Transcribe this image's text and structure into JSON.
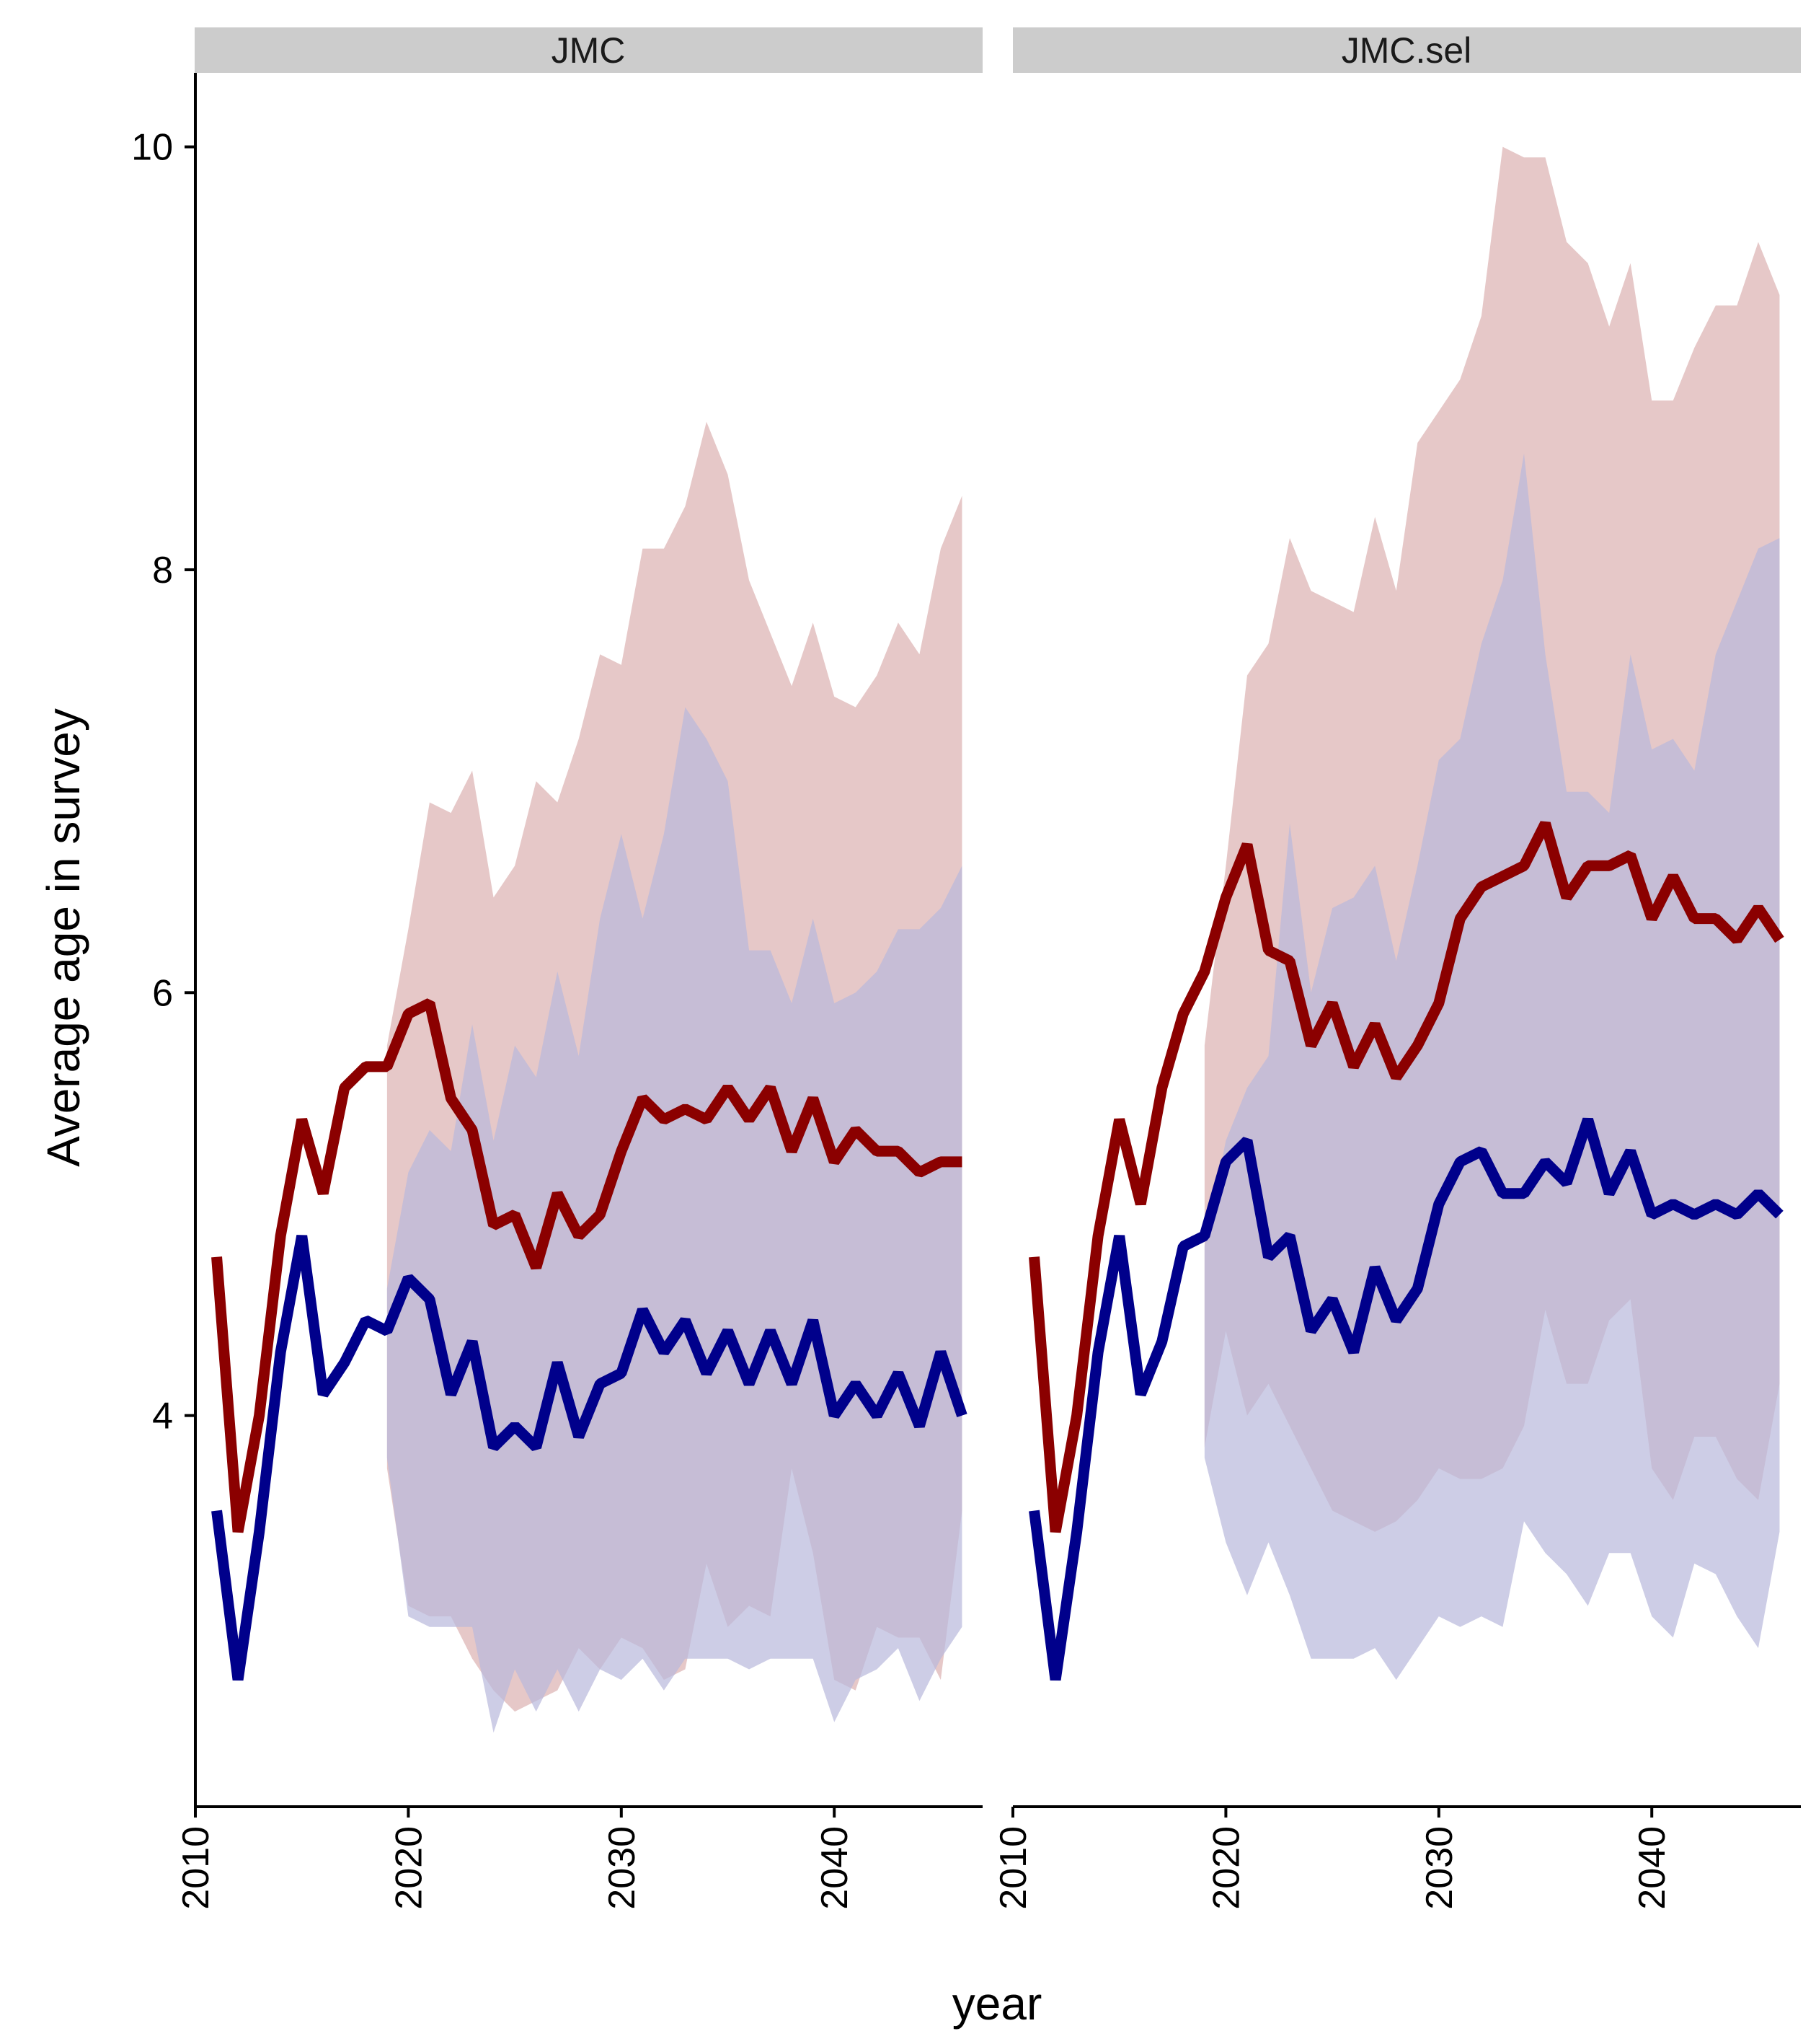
{
  "chart_data": {
    "type": "line",
    "xlabel": "year",
    "ylabel": "Average age in survey",
    "xlim": [
      2010,
      2047
    ],
    "ylim": [
      2.15,
      10.35
    ],
    "x_ticks": [
      "2010",
      "2020",
      "2030",
      "2040"
    ],
    "y_ticks": [
      "4",
      "6",
      "8",
      "10"
    ],
    "grid": false,
    "colors": {
      "red_line": "#8b0000",
      "blue_line": "#00008b",
      "red_band": "#dcb0b0",
      "blue_band": "#b8b8dc",
      "strip_bg": "#cccccc"
    },
    "panels": [
      {
        "title": "JMC",
        "red_line": {
          "x": [
            2011,
            2012,
            2013,
            2014,
            2015,
            2016,
            2017,
            2018,
            2019,
            2020,
            2021,
            2022,
            2023,
            2024,
            2025,
            2026,
            2027,
            2028,
            2029,
            2030,
            2031,
            2032,
            2033,
            2034,
            2035,
            2036,
            2037,
            2038,
            2039,
            2040,
            2041,
            2042,
            2043,
            2044,
            2045,
            2046
          ],
          "y": [
            4.75,
            3.45,
            4.0,
            4.85,
            5.4,
            5.05,
            5.55,
            5.65,
            5.65,
            5.9,
            5.95,
            5.5,
            5.35,
            4.9,
            4.95,
            4.7,
            5.05,
            4.85,
            4.95,
            5.25,
            5.5,
            5.4,
            5.45,
            5.4,
            5.55,
            5.4,
            5.55,
            5.25,
            5.5,
            5.2,
            5.35,
            5.25,
            5.25,
            5.15,
            5.2,
            5.2
          ]
        },
        "blue_line": {
          "x": [
            2011,
            2012,
            2013,
            2014,
            2015,
            2016,
            2017,
            2018,
            2019,
            2020,
            2021,
            2022,
            2023,
            2024,
            2025,
            2026,
            2027,
            2028,
            2029,
            2030,
            2031,
            2032,
            2033,
            2034,
            2035,
            2036,
            2037,
            2038,
            2039,
            2040,
            2041,
            2042,
            2043,
            2044,
            2045,
            2046
          ],
          "y": [
            3.55,
            2.75,
            3.45,
            4.3,
            4.85,
            4.1,
            4.25,
            4.45,
            4.4,
            4.65,
            4.55,
            4.1,
            4.35,
            3.85,
            3.95,
            3.85,
            4.25,
            3.9,
            4.15,
            4.2,
            4.5,
            4.3,
            4.45,
            4.2,
            4.4,
            4.15,
            4.4,
            4.15,
            4.45,
            4.0,
            4.15,
            4.0,
            4.2,
            3.95,
            4.3,
            4.0
          ]
        },
        "red_band": {
          "x": [
            2019,
            2020,
            2021,
            2022,
            2023,
            2024,
            2025,
            2026,
            2027,
            2028,
            2029,
            2030,
            2031,
            2032,
            2033,
            2034,
            2035,
            2036,
            2037,
            2038,
            2039,
            2040,
            2041,
            2042,
            2043,
            2044,
            2045,
            2046
          ],
          "upper": [
            5.75,
            6.3,
            6.9,
            6.85,
            7.05,
            6.45,
            6.6,
            7.0,
            6.9,
            7.2,
            7.6,
            7.55,
            8.1,
            8.1,
            8.3,
            8.7,
            8.45,
            7.95,
            7.7,
            7.45,
            7.75,
            7.4,
            7.35,
            7.5,
            7.75,
            7.6,
            8.1,
            8.35
          ],
          "lower": [
            3.75,
            3.1,
            3.05,
            3.05,
            2.85,
            2.7,
            2.6,
            2.65,
            2.7,
            2.9,
            2.8,
            2.95,
            2.9,
            2.75,
            2.8,
            3.3,
            3.0,
            3.1,
            3.05,
            3.75,
            3.35,
            2.75,
            2.7,
            3.0,
            2.95,
            2.95,
            2.75,
            3.55
          ]
        },
        "blue_band": {
          "x": [
            2019,
            2020,
            2021,
            2022,
            2023,
            2024,
            2025,
            2026,
            2027,
            2028,
            2029,
            2030,
            2031,
            2032,
            2033,
            2034,
            2035,
            2036,
            2037,
            2038,
            2039,
            2040,
            2041,
            2042,
            2043,
            2044,
            2045,
            2046
          ],
          "upper": [
            4.6,
            5.15,
            5.35,
            5.25,
            5.85,
            5.3,
            5.75,
            5.6,
            6.1,
            5.7,
            6.35,
            6.75,
            6.35,
            6.75,
            7.35,
            7.2,
            7.0,
            6.2,
            6.2,
            5.95,
            6.35,
            5.95,
            6.0,
            6.1,
            6.3,
            6.3,
            6.4,
            6.6
          ],
          "lower": [
            3.8,
            3.05,
            3.0,
            3.0,
            3.0,
            2.5,
            2.8,
            2.6,
            2.8,
            2.6,
            2.8,
            2.75,
            2.85,
            2.7,
            2.85,
            2.85,
            2.85,
            2.8,
            2.85,
            2.85,
            2.85,
            2.55,
            2.75,
            2.8,
            2.9,
            2.65,
            2.85,
            3.0
          ]
        }
      },
      {
        "title": "JMC.sel",
        "red_line": {
          "x": [
            2011,
            2012,
            2013,
            2014,
            2015,
            2016,
            2017,
            2018,
            2019,
            2020,
            2021,
            2022,
            2023,
            2024,
            2025,
            2026,
            2027,
            2028,
            2029,
            2030,
            2031,
            2032,
            2033,
            2034,
            2035,
            2036,
            2037,
            2038,
            2039,
            2040,
            2041,
            2042,
            2043,
            2044,
            2045,
            2046
          ],
          "y": [
            4.75,
            3.45,
            4.0,
            4.85,
            5.4,
            5.0,
            5.55,
            5.9,
            6.1,
            6.45,
            6.7,
            6.2,
            6.15,
            5.75,
            5.95,
            5.65,
            5.85,
            5.6,
            5.75,
            5.95,
            6.35,
            6.5,
            6.55,
            6.6,
            6.8,
            6.45,
            6.6,
            6.6,
            6.65,
            6.35,
            6.55,
            6.35,
            6.35,
            6.25,
            6.4,
            6.25
          ]
        },
        "blue_line": {
          "x": [
            2011,
            2012,
            2013,
            2014,
            2015,
            2016,
            2017,
            2018,
            2019,
            2020,
            2021,
            2022,
            2023,
            2024,
            2025,
            2026,
            2027,
            2028,
            2029,
            2030,
            2031,
            2032,
            2033,
            2034,
            2035,
            2036,
            2037,
            2038,
            2039,
            2040,
            2041,
            2042,
            2043,
            2044,
            2045,
            2046
          ],
          "y": [
            3.55,
            2.75,
            3.45,
            4.3,
            4.85,
            4.1,
            4.35,
            4.8,
            4.85,
            5.2,
            5.3,
            4.75,
            4.85,
            4.4,
            4.55,
            4.3,
            4.7,
            4.45,
            4.6,
            5.0,
            5.2,
            5.25,
            5.05,
            5.05,
            5.2,
            5.1,
            5.4,
            5.05,
            5.25,
            4.95,
            5.0,
            4.95,
            5.0,
            4.95,
            5.05,
            4.95
          ]
        },
        "red_band": {
          "x": [
            2019,
            2020,
            2021,
            2022,
            2023,
            2024,
            2025,
            2026,
            2027,
            2028,
            2029,
            2030,
            2031,
            2032,
            2033,
            2034,
            2035,
            2036,
            2037,
            2038,
            2039,
            2040,
            2041,
            2042,
            2043,
            2044,
            2045,
            2046
          ],
          "upper": [
            5.75,
            6.6,
            7.5,
            7.65,
            8.15,
            7.9,
            7.85,
            7.8,
            8.25,
            7.9,
            8.6,
            8.75,
            8.9,
            9.2,
            10.0,
            9.95,
            9.95,
            9.55,
            9.45,
            9.15,
            9.45,
            8.8,
            8.8,
            9.05,
            9.25,
            9.25,
            9.55,
            9.3
          ],
          "lower": [
            3.85,
            4.4,
            4.0,
            4.15,
            3.95,
            3.75,
            3.55,
            3.5,
            3.45,
            3.5,
            3.6,
            3.75,
            3.7,
            3.7,
            3.75,
            3.95,
            4.5,
            4.15,
            4.15,
            4.45,
            4.55,
            3.75,
            3.6,
            3.9,
            3.9,
            3.7,
            3.6,
            4.15
          ]
        },
        "blue_band": {
          "x": [
            2019,
            2020,
            2021,
            2022,
            2023,
            2024,
            2025,
            2026,
            2027,
            2028,
            2029,
            2030,
            2031,
            2032,
            2033,
            2034,
            2035,
            2036,
            2037,
            2038,
            2039,
            2040,
            2041,
            2042,
            2043,
            2044,
            2045,
            2046
          ],
          "upper": [
            4.8,
            5.3,
            5.55,
            5.7,
            6.8,
            6.0,
            6.4,
            6.45,
            6.6,
            6.15,
            6.6,
            7.1,
            7.2,
            7.65,
            7.95,
            8.55,
            7.6,
            6.95,
            6.95,
            6.85,
            7.6,
            7.15,
            7.2,
            7.05,
            7.6,
            7.85,
            8.1,
            8.15
          ],
          "lower": [
            3.8,
            3.4,
            3.15,
            3.4,
            3.15,
            2.85,
            2.85,
            2.85,
            2.9,
            2.75,
            2.9,
            3.05,
            3.0,
            3.05,
            3.0,
            3.5,
            3.35,
            3.25,
            3.1,
            3.35,
            3.35,
            3.05,
            2.95,
            3.3,
            3.25,
            3.05,
            2.9,
            3.45
          ]
        }
      }
    ]
  }
}
